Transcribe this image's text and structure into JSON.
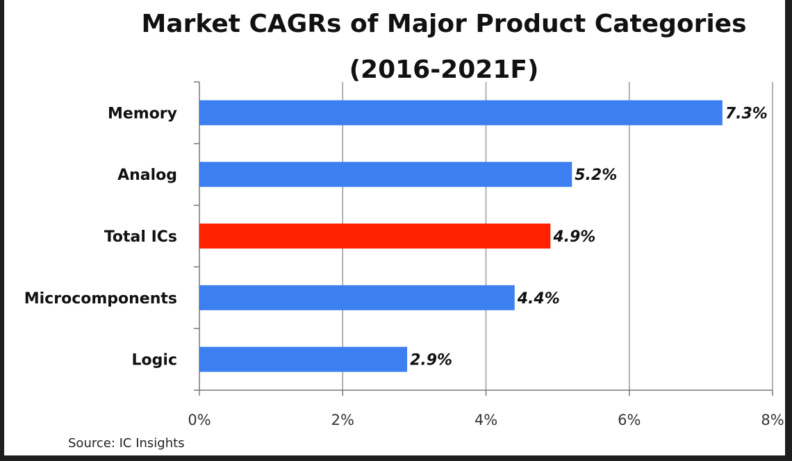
{
  "chart_data": {
    "type": "bar",
    "orientation": "horizontal",
    "title": "Market CAGRs of Major Product Categories",
    "subtitle": "(2016-2021F)",
    "categories": [
      "Memory",
      "Analog",
      "Total ICs",
      "Microcomponents",
      "Logic"
    ],
    "values": [
      7.3,
      5.2,
      4.9,
      4.4,
      2.9
    ],
    "value_labels": [
      "7.3%",
      "5.2%",
      "4.9%",
      "4.4%",
      "2.9%"
    ],
    "bar_colors": [
      "#3b7ff0",
      "#3b7ff0",
      "#ff2200",
      "#3b7ff0",
      "#3b7ff0"
    ],
    "xlim": [
      0,
      8
    ],
    "xticks": [
      0,
      2,
      4,
      6,
      8
    ],
    "xtick_labels": [
      "0%",
      "2%",
      "4%",
      "6%",
      "8%"
    ],
    "xlabel": "",
    "ylabel": "",
    "grid": "vertical",
    "legend": "none",
    "source": "Source:  IC Insights"
  }
}
